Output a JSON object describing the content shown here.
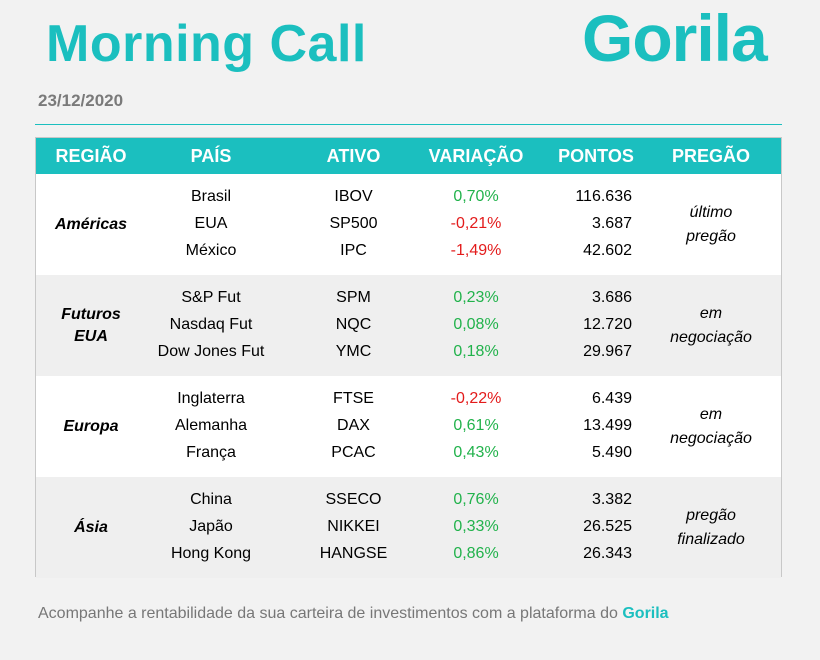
{
  "header": {
    "title": "Morning Call",
    "logo": "Gorila",
    "date": "23/12/2020"
  },
  "colors": {
    "accent": "#1bbfbf",
    "positive": "#21b24b",
    "negative": "#e31b1b"
  },
  "table": {
    "columns": [
      "REGIÃO",
      "PAÍS",
      "ATIVO",
      "VARIAÇÃO",
      "PONTOS",
      "PREGÃO"
    ],
    "groups": [
      {
        "region_lines": [
          "Américas"
        ],
        "pregao_lines": [
          "último",
          "pregão"
        ],
        "rows": [
          {
            "pais": "Brasil",
            "ativo": "IBOV",
            "variacao": "0,70%",
            "pontos": "116.636",
            "sign": "pos"
          },
          {
            "pais": "EUA",
            "ativo": "SP500",
            "variacao": "-0,21%",
            "pontos": "3.687",
            "sign": "neg"
          },
          {
            "pais": "México",
            "ativo": "IPC",
            "variacao": "-1,49%",
            "pontos": "42.602",
            "sign": "neg"
          }
        ]
      },
      {
        "region_lines": [
          "Futuros",
          "EUA"
        ],
        "pregao_lines": [
          "em",
          "negociação"
        ],
        "rows": [
          {
            "pais": "S&P Fut",
            "ativo": "SPM",
            "variacao": "0,23%",
            "pontos": "3.686",
            "sign": "pos"
          },
          {
            "pais": "Nasdaq Fut",
            "ativo": "NQC",
            "variacao": "0,08%",
            "pontos": "12.720",
            "sign": "pos"
          },
          {
            "pais": "Dow Jones Fut",
            "ativo": "YMC",
            "variacao": "0,18%",
            "pontos": "29.967",
            "sign": "pos"
          }
        ]
      },
      {
        "region_lines": [
          "Europa"
        ],
        "pregao_lines": [
          "em",
          "negociação"
        ],
        "rows": [
          {
            "pais": "Inglaterra",
            "ativo": "FTSE",
            "variacao": "-0,22%",
            "pontos": "6.439",
            "sign": "neg"
          },
          {
            "pais": "Alemanha",
            "ativo": "DAX",
            "variacao": "0,61%",
            "pontos": "13.499",
            "sign": "pos"
          },
          {
            "pais": "França",
            "ativo": "PCAC",
            "variacao": "0,43%",
            "pontos": "5.490",
            "sign": "pos"
          }
        ]
      },
      {
        "region_lines": [
          "Ásia"
        ],
        "pregao_lines": [
          "pregão",
          "finalizado"
        ],
        "rows": [
          {
            "pais": "China",
            "ativo": "SSECO",
            "variacao": "0,76%",
            "pontos": "3.382",
            "sign": "pos"
          },
          {
            "pais": "Japão",
            "ativo": "NIKKEI",
            "variacao": "0,33%",
            "pontos": "26.525",
            "sign": "pos"
          },
          {
            "pais": "Hong Kong",
            "ativo": "HANGSE",
            "variacao": "0,86%",
            "pontos": "26.343",
            "sign": "pos"
          }
        ]
      }
    ]
  },
  "footer": {
    "text": "Acompanhe a rentabilidade da sua carteira de investimentos com a plataforma do ",
    "brand": "Gorila"
  }
}
